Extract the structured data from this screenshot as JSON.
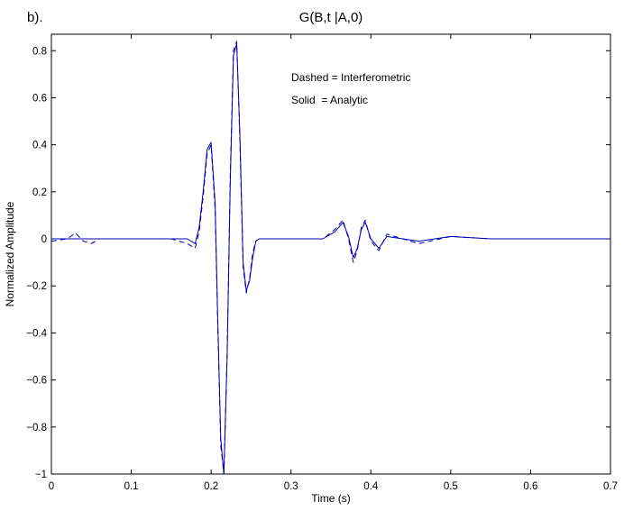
{
  "panel_label": "b).",
  "chart_data": {
    "type": "line",
    "title": "G(B,t |A,0)",
    "xlabel": "Time (s)",
    "ylabel": "Normalized Amplitude",
    "xlim": [
      0,
      0.7
    ],
    "ylim": [
      -1,
      0.87
    ],
    "xticks": [
      0,
      0.1,
      0.2,
      0.3,
      0.4,
      0.5,
      0.6,
      0.7
    ],
    "xtick_labels": [
      "0",
      "0.1",
      "0.2",
      "0.3",
      "0.4",
      "0.5",
      "0.6",
      "0.7"
    ],
    "yticks": [
      -1,
      -0.8,
      -0.6,
      -0.4,
      -0.2,
      0,
      0.2,
      0.4,
      0.6,
      0.8
    ],
    "ytick_labels": [
      "−1",
      "−0.8",
      "−0.6",
      "−0.4",
      "−0.2",
      "0",
      "0.2",
      "0.4",
      "0.6",
      "0.8"
    ],
    "grid": false,
    "color": "#0000b4",
    "annotations": [
      "Dashed = Interferometric",
      "Solid  = Analytic"
    ],
    "series": [
      {
        "style": "solid",
        "x": [
          0,
          0.05,
          0.1,
          0.15,
          0.17,
          0.18,
          0.185,
          0.19,
          0.195,
          0.2,
          0.205,
          0.208,
          0.212,
          0.216,
          0.22,
          0.224,
          0.228,
          0.232,
          0.236,
          0.24,
          0.244,
          0.248,
          0.252,
          0.256,
          0.26,
          0.3,
          0.34,
          0.355,
          0.365,
          0.372,
          0.378,
          0.383,
          0.388,
          0.393,
          0.4,
          0.41,
          0.42,
          0.44,
          0.46,
          0.5,
          0.55,
          0.6,
          0.65,
          0.7
        ],
        "y": [
          0.0,
          0.0,
          0.0,
          0.0,
          0.0,
          -0.02,
          0.05,
          0.2,
          0.38,
          0.41,
          0.15,
          -0.3,
          -0.85,
          -1.0,
          -0.5,
          0.25,
          0.78,
          0.83,
          0.45,
          -0.1,
          -0.22,
          -0.18,
          -0.08,
          -0.01,
          0.0,
          0.0,
          0.0,
          0.03,
          0.07,
          0.01,
          -0.08,
          -0.04,
          0.04,
          0.07,
          0.0,
          -0.04,
          0.01,
          0.0,
          -0.01,
          0.01,
          0.0,
          0.0,
          0.0,
          0.0
        ]
      },
      {
        "style": "dashed",
        "x": [
          0,
          0.02,
          0.03,
          0.04,
          0.05,
          0.06,
          0.08,
          0.15,
          0.17,
          0.18,
          0.185,
          0.19,
          0.195,
          0.2,
          0.205,
          0.208,
          0.212,
          0.216,
          0.22,
          0.224,
          0.228,
          0.232,
          0.236,
          0.24,
          0.244,
          0.248,
          0.252,
          0.256,
          0.26,
          0.3,
          0.34,
          0.355,
          0.365,
          0.372,
          0.378,
          0.383,
          0.388,
          0.393,
          0.4,
          0.41,
          0.42,
          0.44,
          0.46,
          0.5,
          0.55,
          0.6,
          0.65,
          0.7
        ],
        "y": [
          -0.01,
          0.0,
          0.025,
          -0.01,
          -0.02,
          0.0,
          0.0,
          0.0,
          -0.02,
          -0.04,
          0.03,
          0.18,
          0.36,
          0.4,
          0.12,
          -0.32,
          -0.88,
          -1.0,
          -0.48,
          0.28,
          0.8,
          0.84,
          0.42,
          -0.12,
          -0.23,
          -0.17,
          -0.06,
          -0.01,
          0.0,
          0.0,
          0.0,
          0.04,
          0.08,
          0.0,
          -0.1,
          -0.05,
          0.05,
          0.08,
          -0.01,
          -0.05,
          0.02,
          0.0,
          -0.02,
          0.01,
          0.0,
          0.0,
          0.0,
          0.0
        ]
      }
    ]
  }
}
